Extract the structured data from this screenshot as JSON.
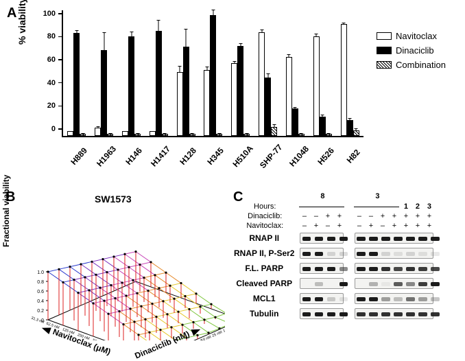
{
  "panel_labels": {
    "A": "A",
    "B": "B",
    "C": "C"
  },
  "panelA": {
    "type": "bar",
    "ylabel": "% viability",
    "ylim": [
      0,
      110
    ],
    "yticks": [
      0,
      20,
      40,
      60,
      80,
      100
    ],
    "categories": [
      "H889",
      "H1963",
      "H146",
      "H1417",
      "H128",
      "H345",
      "H510A",
      "SHP-77",
      "H1048",
      "H526",
      "H82"
    ],
    "series": [
      {
        "name": "Navitoclax",
        "fill": "#ffffff",
        "values": [
          4,
          7,
          4,
          4,
          56,
          58,
          64,
          91,
          69,
          87,
          98
        ],
        "err": [
          1,
          2,
          1,
          1,
          6,
          3,
          2,
          3,
          3,
          3,
          2
        ]
      },
      {
        "name": "Dinaciclib",
        "fill": "#000000",
        "values": [
          90,
          75,
          87,
          92,
          78,
          106,
          79,
          51,
          24,
          17,
          14
        ],
        "err": [
          3,
          16,
          5,
          10,
          16,
          5,
          3,
          4,
          2,
          2,
          2
        ]
      },
      {
        "name": "Combination",
        "fill": "hatch",
        "values": [
          2,
          2,
          2,
          2,
          2,
          2,
          2,
          8,
          2,
          2,
          5
        ],
        "err": [
          1,
          1,
          1,
          1,
          1,
          1,
          1,
          3,
          1,
          1,
          2
        ]
      }
    ],
    "legend_items": [
      "Navitoclax",
      "Dinaciclib",
      "Combination"
    ],
    "background_color": "#ffffff",
    "axis_color": "#000000",
    "label_fontsize": 14
  },
  "panelB": {
    "title": "SW1573",
    "type": "surface3d",
    "zlabel": "Fractional viability",
    "xlabel": "Navitoclax (μM)",
    "ylabel": "Dinaciclib (nM)",
    "xticks": [
      "31.3 nM",
      "62.5 nM",
      "125 nM",
      "250 nM",
      "500 nM",
      "1 uM",
      "2 uM",
      "4 uM"
    ],
    "yticks": [
      "800 nM",
      "400 nM",
      "200 nM",
      "100 nM",
      "50 nM",
      "25 nM",
      "12.5 nM",
      "6.25 nM",
      "3.13 nM"
    ],
    "zticks": [
      "0",
      "0.2",
      "0.4",
      "0.6",
      "0.8",
      "1.0"
    ],
    "stem_color": "#dd1f1f",
    "grid_colors": [
      "#2a3bcf",
      "#7a2fbf",
      "#c846b9",
      "#e68a2c",
      "#e6c82c",
      "#7fc63f"
    ],
    "marker_color": "#000000"
  },
  "panelC": {
    "type": "western-blot",
    "header_labels": {
      "hours": "Hours:",
      "din": "Dinaciclib:",
      "nav": "Navitoclax:"
    },
    "left_block": {
      "hours": "8",
      "lanes": [
        {
          "din": "–",
          "nav": "–"
        },
        {
          "din": "–",
          "nav": "+"
        },
        {
          "din": "+",
          "nav": "–"
        },
        {
          "din": "+",
          "nav": "+"
        }
      ]
    },
    "right_block": {
      "hours_top": [
        "3",
        "1",
        "2",
        "3"
      ],
      "lanes": [
        {
          "din": "–",
          "nav": "–"
        },
        {
          "din": "–",
          "nav": "+"
        },
        {
          "din": "+",
          "nav": "–"
        },
        {
          "din": "+",
          "nav": "+"
        },
        {
          "din": "+",
          "nav": "+"
        },
        {
          "din": "+",
          "nav": "+"
        },
        {
          "din": "+",
          "nav": "+"
        }
      ]
    },
    "rows": [
      {
        "label": "RNAP II",
        "left": [
          1.0,
          1.0,
          1.0,
          1.0
        ],
        "right": [
          1.0,
          1.0,
          1.0,
          1.0,
          1.0,
          1.0,
          1.0
        ]
      },
      {
        "label": "RNAP II, P-Ser2",
        "left": [
          1.0,
          1.0,
          0.15,
          0.15
        ],
        "right": [
          1.0,
          1.0,
          0.15,
          0.1,
          0.15,
          0.1,
          0.1
        ]
      },
      {
        "label": "F.L. PARP",
        "left": [
          1.0,
          1.0,
          1.0,
          0.5
        ],
        "right": [
          1.0,
          1.0,
          0.9,
          0.8,
          0.9,
          0.85,
          0.8
        ]
      },
      {
        "label": "Cleaved PARP",
        "left": [
          0.0,
          0.25,
          0.0,
          1.0
        ],
        "right": [
          0.0,
          0.3,
          0.05,
          0.7,
          0.5,
          0.85,
          1.0
        ]
      },
      {
        "label": "MCL1",
        "left": [
          1.0,
          1.0,
          0.2,
          0.1
        ],
        "right": [
          1.0,
          1.0,
          0.4,
          0.25,
          0.6,
          0.4,
          0.25
        ]
      },
      {
        "label": "Tubulin",
        "left": [
          1.0,
          1.0,
          1.0,
          1.0
        ],
        "right": [
          0.9,
          0.9,
          0.9,
          0.9,
          0.9,
          0.9,
          0.9
        ]
      }
    ]
  }
}
